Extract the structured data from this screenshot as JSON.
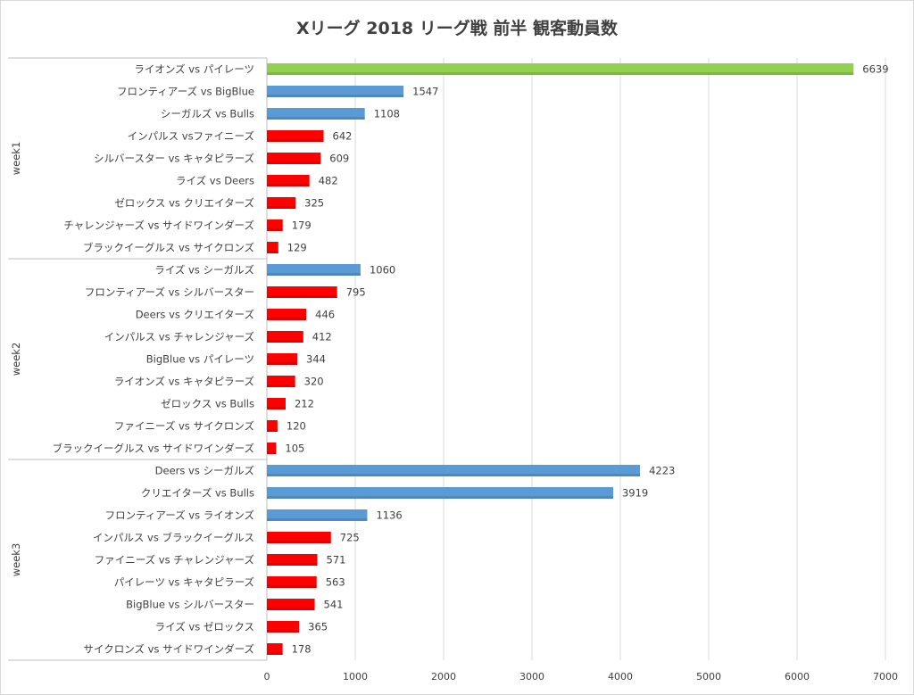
{
  "chart_data": {
    "type": "bar",
    "orientation": "horizontal",
    "title": "Xリーグ 2018 リーグ戦 前半 観客動員数",
    "xlim": [
      0,
      7000
    ],
    "xticks": [
      0,
      1000,
      2000,
      3000,
      4000,
      5000,
      6000,
      7000
    ],
    "grid": true,
    "legend": "none",
    "colors": {
      "green": "#92d050",
      "blue": "#5b9bd5",
      "red": "#ff0000"
    },
    "groups": [
      {
        "name": "week1",
        "items": [
          {
            "label": "ライオンズ vs パイレーツ",
            "value": 6639,
            "color": "green"
          },
          {
            "label": "フロンティアーズ vs BigBlue",
            "value": 1547,
            "color": "blue"
          },
          {
            "label": "シーガルズ vs Bulls",
            "value": 1108,
            "color": "blue"
          },
          {
            "label": "インパルス vsファイニーズ",
            "value": 642,
            "color": "red"
          },
          {
            "label": "シルバースター vs キャタピラーズ",
            "value": 609,
            "color": "red"
          },
          {
            "label": "ライズ vs Deers",
            "value": 482,
            "color": "red"
          },
          {
            "label": "ゼロックス vs クリエイターズ",
            "value": 325,
            "color": "red"
          },
          {
            "label": "チャレンジャーズ vs サイドワインダーズ",
            "value": 179,
            "color": "red"
          },
          {
            "label": "ブラックイーグルス vs サイクロンズ",
            "value": 129,
            "color": "red"
          }
        ]
      },
      {
        "name": "week2",
        "items": [
          {
            "label": "ライズ vs シーガルズ",
            "value": 1060,
            "color": "blue"
          },
          {
            "label": "フロンティアーズ vs シルバースター",
            "value": 795,
            "color": "red"
          },
          {
            "label": "Deers vs クリエイターズ",
            "value": 446,
            "color": "red"
          },
          {
            "label": "インパルス vs チャレンジャーズ",
            "value": 412,
            "color": "red"
          },
          {
            "label": "BigBlue vs パイレーツ",
            "value": 344,
            "color": "red"
          },
          {
            "label": "ライオンズ vs キャタピラーズ",
            "value": 320,
            "color": "red"
          },
          {
            "label": "ゼロックス vs Bulls",
            "value": 212,
            "color": "red"
          },
          {
            "label": "ファイニーズ vs サイクロンズ",
            "value": 120,
            "color": "red"
          },
          {
            "label": "ブラックイーグルス vs サイドワインダーズ",
            "value": 105,
            "color": "red"
          }
        ]
      },
      {
        "name": "week3",
        "items": [
          {
            "label": "Deers vs シーガルズ",
            "value": 4223,
            "color": "blue"
          },
          {
            "label": "クリエイターズ vs Bulls",
            "value": 3919,
            "color": "blue"
          },
          {
            "label": "フロンティアーズ vs ライオンズ",
            "value": 1136,
            "color": "blue"
          },
          {
            "label": "インパルス vs ブラックイーグルス",
            "value": 725,
            "color": "red"
          },
          {
            "label": "ファイニーズ vs チャレンジャーズ",
            "value": 571,
            "color": "red"
          },
          {
            "label": "パイレーツ vs キャタピラーズ",
            "value": 563,
            "color": "red"
          },
          {
            "label": "BigBlue vs シルバースター",
            "value": 541,
            "color": "red"
          },
          {
            "label": "ライズ vs ゼロックス",
            "value": 365,
            "color": "red"
          },
          {
            "label": "サイクロンズ vs サイドワインダーズ",
            "value": 178,
            "color": "red"
          }
        ]
      }
    ]
  }
}
